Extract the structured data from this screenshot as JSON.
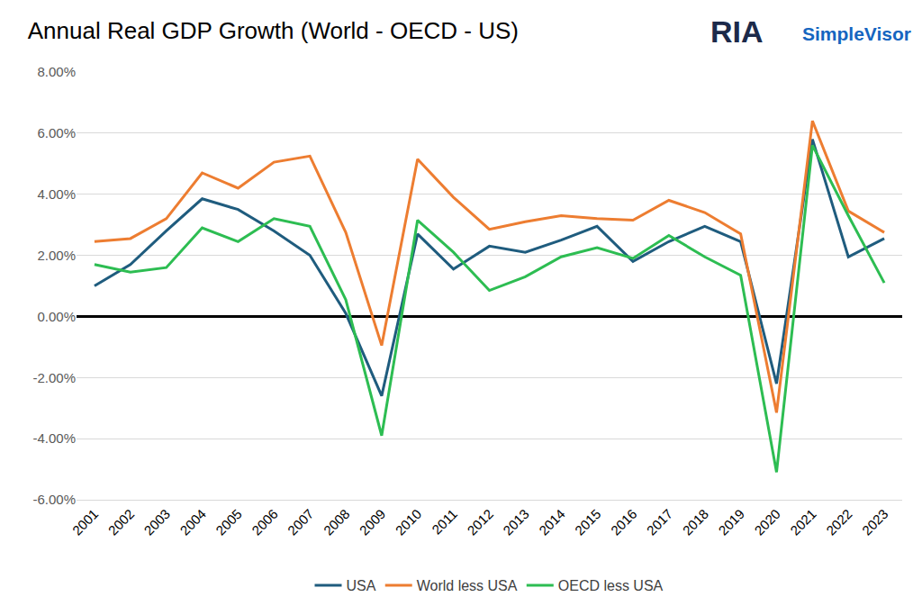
{
  "chart_data": {
    "type": "line",
    "title": "Annual Real GDP Growth (World - OECD - US)",
    "annotations": [
      {
        "text": "RIA"
      },
      {
        "text": "SimpleVisor"
      }
    ],
    "categories": [
      "2001",
      "2002",
      "2003",
      "2004",
      "2005",
      "2006",
      "2007",
      "2008",
      "2009",
      "2010",
      "2011",
      "2012",
      "2013",
      "2014",
      "2015",
      "2016",
      "2017",
      "2018",
      "2019",
      "2020",
      "2021",
      "2022",
      "2023"
    ],
    "series": [
      {
        "name": "USA",
        "color": "#1f5c7e",
        "values": [
          1.0,
          1.7,
          2.8,
          3.85,
          3.5,
          2.8,
          2.0,
          0.1,
          -2.6,
          2.7,
          1.55,
          2.3,
          2.1,
          2.5,
          2.95,
          1.8,
          2.45,
          2.95,
          2.45,
          -2.2,
          5.8,
          1.95,
          2.55
        ]
      },
      {
        "name": "World less USA",
        "color": "#ed7d31",
        "values": [
          2.45,
          2.55,
          3.2,
          4.7,
          4.2,
          5.05,
          5.25,
          2.75,
          -0.95,
          5.15,
          3.9,
          2.85,
          3.1,
          3.3,
          3.2,
          3.15,
          3.8,
          3.4,
          2.7,
          -3.15,
          6.4,
          3.45,
          2.75
        ]
      },
      {
        "name": "OECD less USA",
        "color": "#2dbd52",
        "values": [
          1.7,
          1.45,
          1.6,
          2.9,
          2.45,
          3.2,
          2.95,
          0.55,
          -3.9,
          3.15,
          2.1,
          0.85,
          1.3,
          1.95,
          2.25,
          1.9,
          2.65,
          1.95,
          1.35,
          -5.1,
          5.6,
          3.3,
          1.1
        ]
      }
    ],
    "ylim": [
      -6,
      8
    ],
    "yticks": [
      {
        "value": -6,
        "label": "-6.00%"
      },
      {
        "value": -4,
        "label": "-4.00%"
      },
      {
        "value": -2,
        "label": "-2.00%"
      },
      {
        "value": 0,
        "label": "0.00%"
      },
      {
        "value": 2,
        "label": "2.00%"
      },
      {
        "value": 4,
        "label": "4.00%"
      },
      {
        "value": 6,
        "label": "6.00%"
      },
      {
        "value": 8,
        "label": "8.00%"
      }
    ],
    "grid": true,
    "legend": "bottom"
  }
}
